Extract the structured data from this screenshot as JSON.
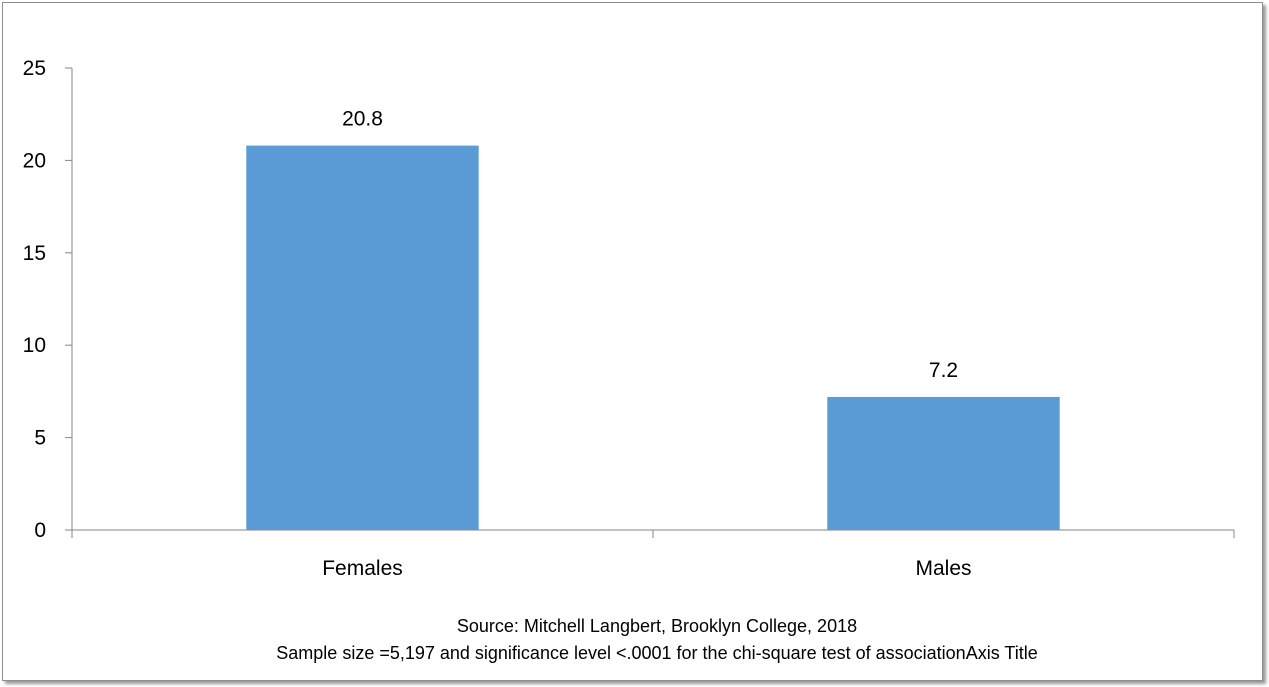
{
  "chart_data": {
    "type": "bar",
    "categories": [
      "Females",
      "Males"
    ],
    "values": [
      20.8,
      7.2
    ],
    "data_labels": [
      "20.8",
      "7.2"
    ],
    "yticks": [
      0,
      5,
      10,
      15,
      20,
      25
    ],
    "ylim": [
      0,
      25
    ],
    "xlabel_lines": [
      "Source: Mitchell Langbert, Brooklyn College, 2018",
      "Sample size =5,197 and significance level <.0001 for the chi-square test of associationAxis Title"
    ],
    "grid": false,
    "legend": "none",
    "bar_color": "#5b9bd5"
  }
}
